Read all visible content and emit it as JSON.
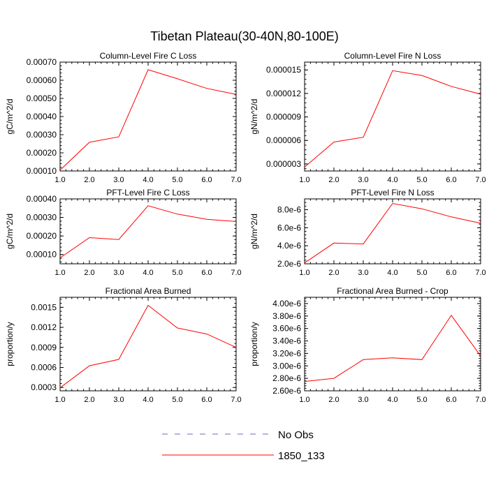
{
  "title": "Tibetan Plateau(30-40N,80-100E)",
  "colors": {
    "series": "#ff0000",
    "obs": "#6b6bbf",
    "axis": "#000000"
  },
  "legend": [
    {
      "label": "No Obs",
      "style": "dashed",
      "color": "#6b6bbf"
    },
    {
      "label": "1850_133",
      "style": "solid",
      "color": "#ff0000"
    }
  ],
  "chart_data": [
    {
      "type": "line",
      "title": "Column-Level Fire C Loss",
      "ylabel": "gC/m^2/d",
      "xlim": [
        1,
        7
      ],
      "ylim": [
        0.0001,
        0.0007
      ],
      "xticks": [
        "1.0",
        "2.0",
        "3.0",
        "4.0",
        "5.0",
        "6.0",
        "7.0"
      ],
      "yticks": [
        {
          "v": 0.0001,
          "label": "0.00010"
        },
        {
          "v": 0.0002,
          "label": "0.00020"
        },
        {
          "v": 0.0003,
          "label": "0.00030"
        },
        {
          "v": 0.0004,
          "label": "0.00040"
        },
        {
          "v": 0.0005,
          "label": "0.00050"
        },
        {
          "v": 0.0006,
          "label": "0.00060"
        },
        {
          "v": 0.0007,
          "label": "0.00070"
        }
      ],
      "series": [
        {
          "name": "1850_133",
          "x": [
            1,
            2,
            3,
            4,
            5,
            6,
            7
          ],
          "values": [
            0.000105,
            0.000258,
            0.000288,
            0.000658,
            0.000608,
            0.000555,
            0.000522
          ]
        }
      ]
    },
    {
      "type": "line",
      "title": "Column-Level Fire N Loss",
      "ylabel": "gN/m^2/d",
      "xlim": [
        1,
        7
      ],
      "ylim": [
        2.1e-06,
        1.6e-05
      ],
      "xticks": [
        "1.0",
        "2.0",
        "3.0",
        "4.0",
        "5.0",
        "6.0",
        "7.0"
      ],
      "yticks": [
        {
          "v": 3e-06,
          "label": "0.000003"
        },
        {
          "v": 6e-06,
          "label": "0.000006"
        },
        {
          "v": 9e-06,
          "label": "0.000009"
        },
        {
          "v": 1.2e-05,
          "label": "0.000012"
        },
        {
          "v": 1.5e-05,
          "label": "0.000015"
        }
      ],
      "series": [
        {
          "name": "1850_133",
          "x": [
            1,
            2,
            3,
            4,
            5,
            6,
            7
          ],
          "values": [
            2.6e-06,
            5.8e-06,
            6.4e-06,
            1.49e-05,
            1.43e-05,
            1.29e-05,
            1.19e-05
          ]
        }
      ]
    },
    {
      "type": "line",
      "title": "PFT-Level Fire C Loss",
      "ylabel": "gC/m^2/d",
      "xlim": [
        1,
        7
      ],
      "ylim": [
        5e-05,
        0.0004
      ],
      "xticks": [
        "1.0",
        "2.0",
        "3.0",
        "4.0",
        "5.0",
        "6.0",
        "7.0"
      ],
      "yticks": [
        {
          "v": 0.0001,
          "label": "0.00010"
        },
        {
          "v": 0.0002,
          "label": "0.00020"
        },
        {
          "v": 0.0003,
          "label": "0.00030"
        },
        {
          "v": 0.0004,
          "label": "0.00040"
        }
      ],
      "series": [
        {
          "name": "1850_133",
          "x": [
            1,
            2,
            3,
            4,
            5,
            6,
            7
          ],
          "values": [
            8.2e-05,
            0.000191,
            0.000181,
            0.000363,
            0.000318,
            0.00029,
            0.000278
          ]
        }
      ]
    },
    {
      "type": "line",
      "title": "PFT-Level Fire N Loss",
      "ylabel": "gN/m^2/d",
      "xlim": [
        1,
        7
      ],
      "ylim": [
        2e-06,
        9.2e-06
      ],
      "xticks": [
        "1.0",
        "2.0",
        "3.0",
        "4.0",
        "5.0",
        "6.0",
        "7.0"
      ],
      "yticks": [
        {
          "v": 2e-06,
          "label": "2.0e-6"
        },
        {
          "v": 4e-06,
          "label": "4.0e-6"
        },
        {
          "v": 6e-06,
          "label": "6.0e-6"
        },
        {
          "v": 8e-06,
          "label": "8.0e-6"
        }
      ],
      "series": [
        {
          "name": "1850_133",
          "x": [
            1,
            2,
            3,
            4,
            5,
            6,
            7
          ],
          "values": [
            2.1e-06,
            4.3e-06,
            4.2e-06,
            8.7e-06,
            8.1e-06,
            7.2e-06,
            6.5e-06
          ]
        }
      ]
    },
    {
      "type": "line",
      "title": "Fractional Area Burned",
      "ylabel": "proportion/y",
      "xlim": [
        1,
        7
      ],
      "ylim": [
        0.00025,
        0.00165
      ],
      "xticks": [
        "1.0",
        "2.0",
        "3.0",
        "4.0",
        "5.0",
        "6.0",
        "7.0"
      ],
      "yticks": [
        {
          "v": 0.0003,
          "label": "0.0003"
        },
        {
          "v": 0.0006,
          "label": "0.0006"
        },
        {
          "v": 0.0009,
          "label": "0.0009"
        },
        {
          "v": 0.0012,
          "label": "0.0012"
        },
        {
          "v": 0.0015,
          "label": "0.0015"
        }
      ],
      "series": [
        {
          "name": "1850_133",
          "x": [
            1,
            2,
            3,
            4,
            5,
            6,
            7
          ],
          "values": [
            0.000295,
            0.000625,
            0.00072,
            0.00153,
            0.00119,
            0.0011,
            0.0009
          ]
        }
      ]
    },
    {
      "type": "line",
      "title": "Fractional Area Burned - Crop",
      "ylabel": "proportion/y",
      "xlim": [
        1,
        7
      ],
      "ylim": [
        2.6e-06,
        4.1e-06
      ],
      "xticks": [
        "1.0",
        "2.0",
        "3.0",
        "4.0",
        "5.0",
        "6.0",
        "7.0"
      ],
      "yticks": [
        {
          "v": 2.6e-06,
          "label": "2.60e-6"
        },
        {
          "v": 2.8e-06,
          "label": "2.80e-6"
        },
        {
          "v": 3e-06,
          "label": "3.00e-6"
        },
        {
          "v": 3.2e-06,
          "label": "3.20e-6"
        },
        {
          "v": 3.4e-06,
          "label": "3.40e-6"
        },
        {
          "v": 3.6e-06,
          "label": "3.60e-6"
        },
        {
          "v": 3.8e-06,
          "label": "3.80e-6"
        },
        {
          "v": 4e-06,
          "label": "4.00e-6"
        }
      ],
      "series": [
        {
          "name": "1850_133",
          "x": [
            1,
            2,
            3,
            4,
            5,
            6,
            7
          ],
          "values": [
            2.75e-06,
            2.8e-06,
            3.1e-06,
            3.13e-06,
            3.1e-06,
            3.81e-06,
            3.16e-06
          ]
        }
      ]
    }
  ]
}
